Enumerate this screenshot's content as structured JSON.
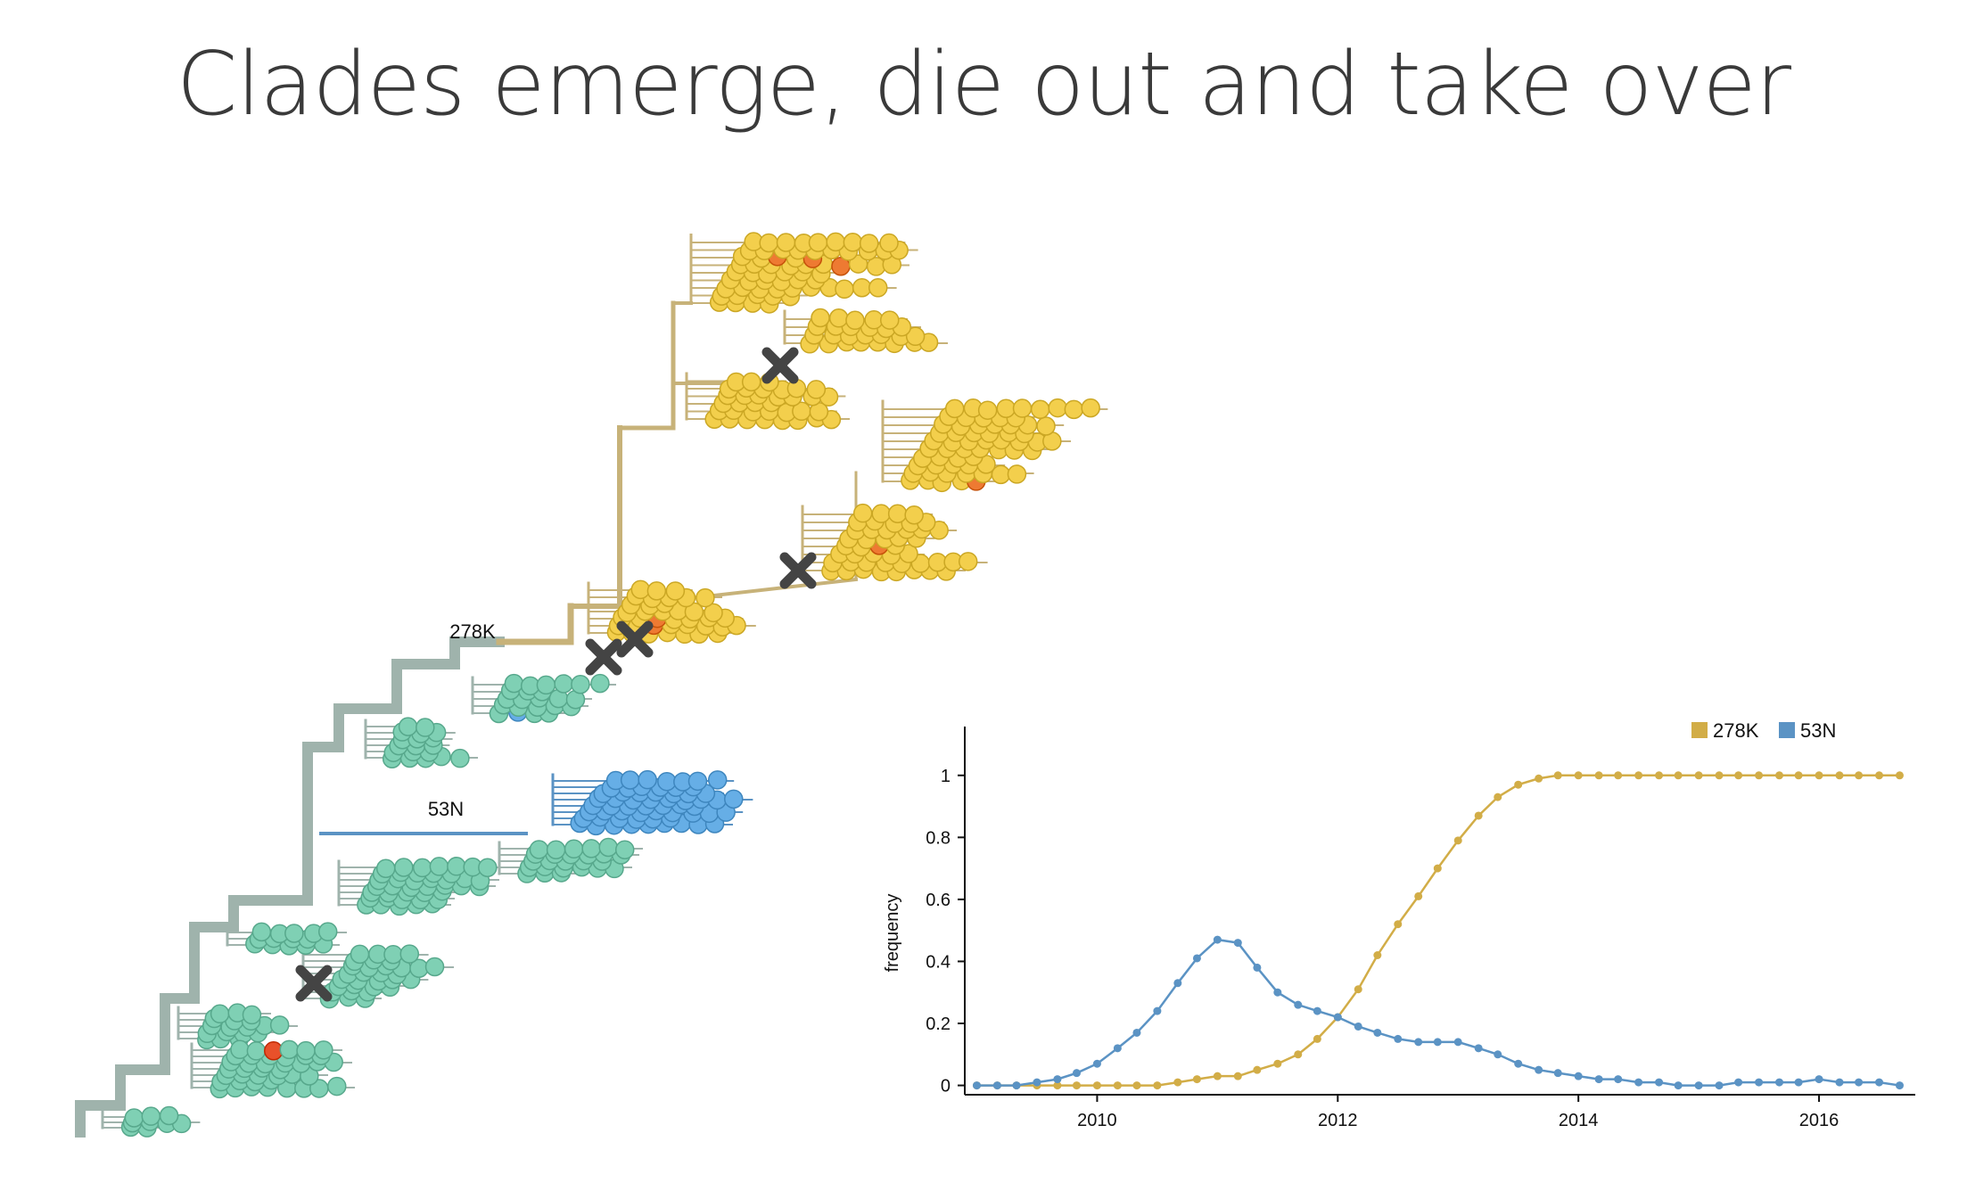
{
  "title": "Clades emerge, die out and take over",
  "colors": {
    "clade_278K": "#d2ad47",
    "clade_53N": "#5b93c4",
    "tip_yellow": "#f3cf4c",
    "tip_teal": "#7fd0b4",
    "tip_blue": "#66aee6",
    "tip_orange": "#ee7a32",
    "tip_red": "#e8512a",
    "tip_lime": "#d6ea5a",
    "branch_gray": "#9fb3ac",
    "branch_tan": "#c7b279",
    "marker": "#444444"
  },
  "tree": {
    "clade_labels": [
      "278K",
      "53N"
    ],
    "extinction_markers": 5
  },
  "chart_data": {
    "type": "line",
    "xlabel": "",
    "ylabel": "frequency",
    "xlim": [
      2008.9,
      2016.8
    ],
    "ylim": [
      -0.03,
      1.1
    ],
    "xticks": [
      "2010",
      "2012",
      "2014",
      "2016"
    ],
    "yticks": [
      "0",
      "0.2",
      "0.4",
      "0.6",
      "0.8",
      "1"
    ],
    "legend_position": "top-right",
    "grid": false,
    "x": [
      2009.0,
      2009.17,
      2009.33,
      2009.5,
      2009.67,
      2009.83,
      2010.0,
      2010.17,
      2010.33,
      2010.5,
      2010.67,
      2010.83,
      2011.0,
      2011.17,
      2011.33,
      2011.5,
      2011.67,
      2011.83,
      2012.0,
      2012.17,
      2012.33,
      2012.5,
      2012.67,
      2012.83,
      2013.0,
      2013.17,
      2013.33,
      2013.5,
      2013.67,
      2013.83,
      2014.0,
      2014.17,
      2014.33,
      2014.5,
      2014.67,
      2014.83,
      2015.0,
      2015.17,
      2015.33,
      2015.5,
      2015.67,
      2015.83,
      2016.0,
      2016.17,
      2016.33,
      2016.5,
      2016.67
    ],
    "series": [
      {
        "name": "278K",
        "color": "#d2ad47",
        "values": [
          0,
          0,
          0,
          0,
          0,
          0,
          0,
          0,
          0,
          0,
          0.01,
          0.02,
          0.03,
          0.03,
          0.05,
          0.07,
          0.1,
          0.15,
          0.22,
          0.31,
          0.42,
          0.52,
          0.61,
          0.7,
          0.79,
          0.87,
          0.93,
          0.97,
          0.99,
          1,
          1,
          1,
          1,
          1,
          1,
          1,
          1,
          1,
          1,
          1,
          1,
          1,
          1,
          1,
          1,
          1,
          1
        ]
      },
      {
        "name": "53N",
        "color": "#5b93c4",
        "values": [
          0,
          0,
          0,
          0.01,
          0.02,
          0.04,
          0.07,
          0.12,
          0.17,
          0.24,
          0.33,
          0.41,
          0.47,
          0.46,
          0.38,
          0.3,
          0.26,
          0.24,
          0.22,
          0.19,
          0.17,
          0.15,
          0.14,
          0.14,
          0.14,
          0.12,
          0.1,
          0.07,
          0.05,
          0.04,
          0.03,
          0.02,
          0.02,
          0.01,
          0.01,
          0,
          0,
          0,
          0.01,
          0.01,
          0.01,
          0.01,
          0.02,
          0.01,
          0.01,
          0.01,
          0
        ]
      }
    ]
  }
}
